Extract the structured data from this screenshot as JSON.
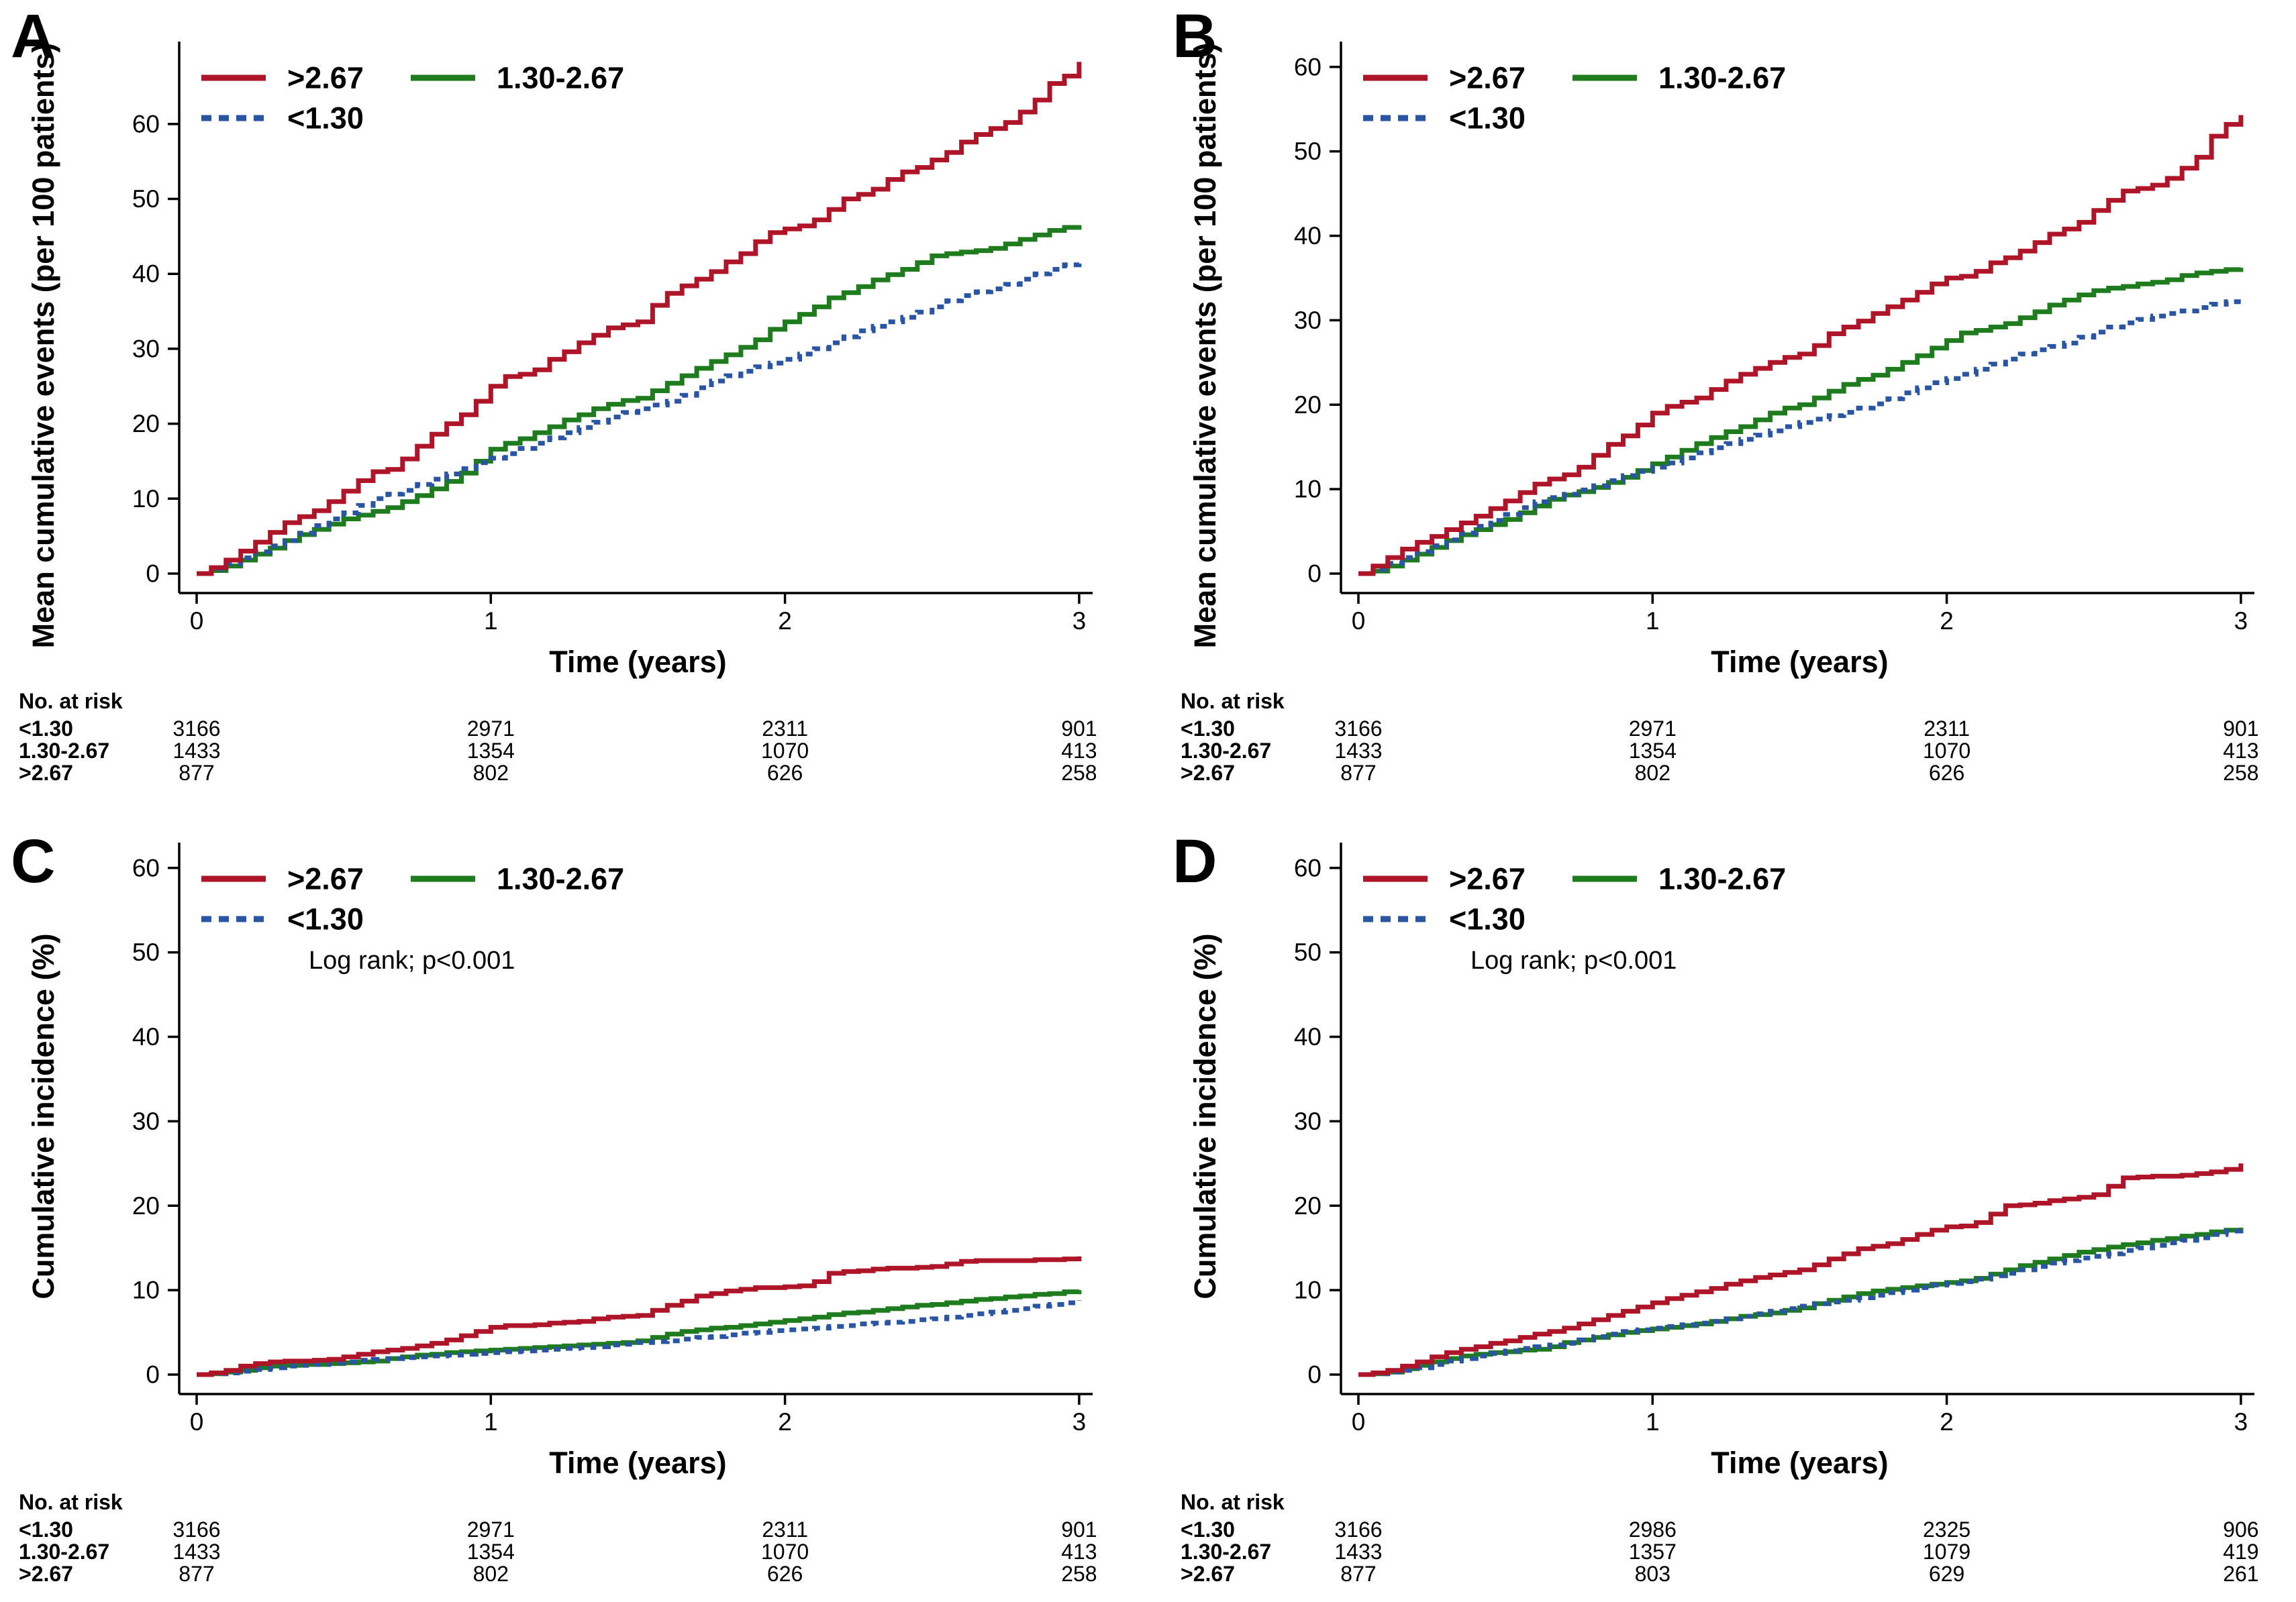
{
  "chart_data": [
    {
      "panel_label": "A",
      "type": "line",
      "title": "",
      "xlabel": "Time (years)",
      "ylabel": "Mean cumulative events (per 100 patients)",
      "x_ticks": [
        0,
        1,
        2,
        3
      ],
      "y_ticks": [
        0,
        10,
        20,
        30,
        40,
        50,
        60
      ],
      "xlim": [
        0,
        3
      ],
      "ylim": [
        0,
        71
      ],
      "grid": false,
      "legend_position": "top-left-inside",
      "annotation": "",
      "x_start": 0,
      "x_step": 0.05,
      "series": [
        {
          "name": ">2.67",
          "color": "#ae1528",
          "line_style": "solid",
          "values": [
            0,
            0.8,
            1.8,
            3,
            4.2,
            5.5,
            6.8,
            7.6,
            8.4,
            9.6,
            11,
            12.4,
            13.6,
            13.9,
            15.3,
            17,
            18.6,
            20,
            21.2,
            23,
            25,
            26.3,
            26.6,
            27.2,
            28.6,
            29.6,
            30.8,
            31.8,
            32.8,
            33.2,
            33.6,
            35.8,
            37.4,
            38.4,
            39.3,
            40.3,
            41.6,
            42.7,
            44.3,
            45.5,
            46,
            46.4,
            47.2,
            48.6,
            50,
            50.6,
            51.3,
            52.6,
            53.6,
            54.2,
            55.2,
            56.2,
            57.6,
            58.6,
            59.4,
            60.2,
            61.6,
            63.2,
            65.4,
            66.4,
            68.3
          ]
        },
        {
          "name": "1.30-2.67",
          "color": "#1e7b1e",
          "line_style": "solid",
          "values": [
            0,
            0.4,
            1,
            1.8,
            2.6,
            3.4,
            4.4,
            5.2,
            5.9,
            6.6,
            7.3,
            7.8,
            8.3,
            8.8,
            9.6,
            10.4,
            11.3,
            12.3,
            13.4,
            15,
            16.6,
            17.4,
            18,
            18.8,
            19.6,
            20.5,
            21.2,
            22,
            22.6,
            23.1,
            23.4,
            24.4,
            25.4,
            26.4,
            27.4,
            28.3,
            29.2,
            30.2,
            31.2,
            32.6,
            33.6,
            34.6,
            35.6,
            36.8,
            37.5,
            38.3,
            39.2,
            39.9,
            40.6,
            41.5,
            42.4,
            42.7,
            42.9,
            43.1,
            43.4,
            44,
            44.6,
            45.2,
            45.8,
            46.2,
            46.5
          ]
        },
        {
          "name": "<1.30",
          "color": "#2a55a2",
          "line_style": "dashed",
          "values": [
            0,
            0.6,
            1.3,
            2.1,
            2.9,
            3.7,
            4.4,
            5.4,
            6.4,
            7.3,
            8.1,
            9.1,
            10,
            10.6,
            11.1,
            11.9,
            12.6,
            13.3,
            14,
            14.8,
            15.4,
            16,
            16.7,
            17.4,
            18.1,
            18.8,
            19.5,
            20.2,
            20.9,
            21.5,
            22,
            22.5,
            23,
            23.8,
            24.8,
            25.7,
            26.4,
            27,
            27.6,
            28.1,
            28.6,
            29.3,
            30,
            30.8,
            31.6,
            32.4,
            33,
            33.6,
            34.2,
            34.9,
            35.6,
            36.4,
            37.1,
            37.6,
            38,
            38.6,
            39.3,
            40,
            40.6,
            41.2,
            42
          ]
        }
      ],
      "risk_table": {
        "header": "No. at risk",
        "row_labels": [
          "<1.30",
          "1.30-2.67",
          ">2.67"
        ],
        "rows": [
          [
            3166,
            2971,
            2311,
            901
          ],
          [
            1433,
            1354,
            1070,
            413
          ],
          [
            877,
            802,
            626,
            258
          ]
        ]
      }
    },
    {
      "panel_label": "B",
      "type": "line",
      "title": "",
      "xlabel": "Time (years)",
      "ylabel": "Mean cumulative events (per 100 patients)",
      "x_ticks": [
        0,
        1,
        2,
        3
      ],
      "y_ticks": [
        0,
        10,
        20,
        30,
        40,
        50,
        60
      ],
      "xlim": [
        0,
        3
      ],
      "ylim": [
        0,
        63
      ],
      "grid": false,
      "legend_position": "top-left-inside",
      "annotation": "",
      "x_start": 0,
      "x_step": 0.05,
      "series": [
        {
          "name": ">2.67",
          "color": "#ae1528",
          "line_style": "solid",
          "values": [
            0,
            0.9,
            1.9,
            2.9,
            3.7,
            4.4,
            5.2,
            6,
            6.8,
            7.7,
            8.6,
            9.6,
            10.6,
            11.2,
            11.7,
            12.6,
            14,
            15.3,
            16.3,
            17.6,
            19,
            19.8,
            20.3,
            20.8,
            21.8,
            22.8,
            23.6,
            24.3,
            25,
            25.6,
            26,
            27,
            28.4,
            29.2,
            29.9,
            30.8,
            31.6,
            32.4,
            33.3,
            34.3,
            35,
            35.2,
            35.8,
            36.8,
            37.4,
            38.2,
            39.2,
            40.2,
            40.8,
            41.6,
            43,
            44.2,
            45.3,
            45.6,
            46,
            46.8,
            48,
            49.3,
            51.8,
            53.2,
            54.3
          ]
        },
        {
          "name": "1.30-2.67",
          "color": "#1e7b1e",
          "line_style": "solid",
          "values": [
            0,
            0.3,
            0.9,
            1.6,
            2.3,
            3.1,
            3.9,
            4.6,
            5.2,
            5.8,
            6.4,
            7.2,
            8,
            8.8,
            9.3,
            9.7,
            10.2,
            10.8,
            11.4,
            12.2,
            13,
            13.8,
            14.6,
            15.4,
            16.1,
            16.8,
            17.4,
            18.2,
            19,
            19.6,
            20,
            20.8,
            21.6,
            22.4,
            23,
            23.5,
            24.2,
            25,
            25.8,
            26.7,
            27.6,
            28.5,
            28.8,
            29.2,
            29.6,
            30.3,
            31,
            31.8,
            32.4,
            33,
            33.5,
            33.8,
            34,
            34.3,
            34.5,
            34.8,
            35.3,
            35.6,
            35.8,
            36,
            36.2
          ]
        },
        {
          "name": "<1.30",
          "color": "#2a55a2",
          "line_style": "dashed",
          "values": [
            0,
            0.5,
            1.2,
            1.9,
            2.6,
            3.3,
            4,
            4.8,
            5.6,
            6.3,
            7,
            7.8,
            8.5,
            9,
            9.4,
            9.9,
            10.4,
            11,
            11.6,
            12.1,
            12.6,
            13.1,
            13.7,
            14.3,
            14.9,
            15.4,
            15.9,
            16.4,
            16.9,
            17.4,
            17.9,
            18.3,
            18.7,
            19.1,
            19.6,
            20.1,
            20.7,
            21.4,
            22,
            22.6,
            23.1,
            23.6,
            24.2,
            24.8,
            25.4,
            26,
            26.5,
            26.9,
            27.3,
            28,
            28.6,
            29.2,
            29.7,
            30.1,
            30.5,
            30.8,
            31.1,
            31.5,
            31.9,
            32.2,
            32.6
          ]
        }
      ],
      "risk_table": {
        "header": "No. at risk",
        "row_labels": [
          "<1.30",
          "1.30-2.67",
          ">2.67"
        ],
        "rows": [
          [
            3166,
            2971,
            2311,
            901
          ],
          [
            1433,
            1354,
            1070,
            413
          ],
          [
            877,
            802,
            626,
            258
          ]
        ]
      }
    },
    {
      "panel_label": "C",
      "type": "line",
      "title": "",
      "xlabel": "Time (years)",
      "ylabel": "Cumulative incidence (%)",
      "x_ticks": [
        0,
        1,
        2,
        3
      ],
      "y_ticks": [
        0,
        10,
        20,
        30,
        40,
        50,
        60
      ],
      "xlim": [
        0,
        3
      ],
      "ylim": [
        0,
        63
      ],
      "grid": false,
      "legend_position": "top-left-inside",
      "annotation": "Log rank; p<0.001",
      "x_start": 0,
      "x_step": 0.05,
      "series": [
        {
          "name": ">2.67",
          "color": "#ae1528",
          "line_style": "solid",
          "values": [
            0,
            0.2,
            0.5,
            1,
            1.3,
            1.5,
            1.6,
            1.6,
            1.7,
            1.8,
            2.1,
            2.4,
            2.7,
            2.9,
            3.1,
            3.4,
            3.7,
            4.1,
            4.6,
            5.1,
            5.6,
            5.8,
            5.8,
            5.9,
            6.1,
            6.2,
            6.3,
            6.6,
            6.8,
            6.9,
            7,
            7.6,
            8.2,
            8.7,
            9.3,
            9.6,
            9.9,
            10.1,
            10.3,
            10.3,
            10.4,
            10.5,
            11,
            12,
            12.2,
            12.3,
            12.5,
            12.6,
            12.6,
            12.7,
            12.8,
            13.1,
            13.4,
            13.5,
            13.5,
            13.5,
            13.5,
            13.6,
            13.6,
            13.7,
            14
          ]
        },
        {
          "name": "1.30-2.67",
          "color": "#1e7b1e",
          "line_style": "solid",
          "values": [
            0,
            0.1,
            0.3,
            0.5,
            0.8,
            1,
            1.1,
            1.2,
            1.2,
            1.3,
            1.4,
            1.5,
            1.6,
            1.9,
            2.1,
            2.3,
            2.4,
            2.6,
            2.7,
            2.8,
            2.9,
            3,
            3.1,
            3.2,
            3.3,
            3.4,
            3.5,
            3.6,
            3.7,
            3.8,
            4,
            4.4,
            4.8,
            5.1,
            5.3,
            5.5,
            5.6,
            5.8,
            6,
            6.2,
            6.4,
            6.6,
            6.8,
            7.1,
            7.3,
            7.4,
            7.6,
            7.8,
            8,
            8.2,
            8.3,
            8.5,
            8.7,
            8.9,
            9,
            9.2,
            9.3,
            9.5,
            9.6,
            9.8,
            10
          ]
        },
        {
          "name": "<1.30",
          "color": "#2a55a2",
          "line_style": "dashed",
          "values": [
            0,
            0.1,
            0.2,
            0.4,
            0.6,
            0.8,
            1,
            1.1,
            1.2,
            1.4,
            1.5,
            1.7,
            1.8,
            1.9,
            2,
            2.1,
            2.2,
            2.3,
            2.4,
            2.5,
            2.6,
            2.7,
            2.8,
            2.9,
            3,
            3.1,
            3.2,
            3.3,
            3.5,
            3.6,
            3.8,
            3.9,
            4,
            4.2,
            4.4,
            4.5,
            4.7,
            4.9,
            5,
            5.2,
            5.3,
            5.4,
            5.5,
            5.7,
            5.8,
            6,
            6.1,
            6.2,
            6.3,
            6.5,
            6.6,
            6.8,
            7,
            7.2,
            7.4,
            7.6,
            7.8,
            8.1,
            8.3,
            8.5,
            8.8
          ]
        }
      ],
      "risk_table": {
        "header": "No. at risk",
        "row_labels": [
          "<1.30",
          "1.30-2.67",
          ">2.67"
        ],
        "rows": [
          [
            3166,
            2971,
            2311,
            901
          ],
          [
            1433,
            1354,
            1070,
            413
          ],
          [
            877,
            802,
            626,
            258
          ]
        ]
      }
    },
    {
      "panel_label": "D",
      "type": "line",
      "title": "",
      "xlabel": "Time (years)",
      "ylabel": "Cumulative incidence (%)",
      "x_ticks": [
        0,
        1,
        2,
        3
      ],
      "y_ticks": [
        0,
        10,
        20,
        30,
        40,
        50,
        60
      ],
      "xlim": [
        0,
        3
      ],
      "ylim": [
        0,
        63
      ],
      "grid": false,
      "legend_position": "top-left-inside",
      "annotation": "Log rank; p<0.001",
      "x_start": 0,
      "x_step": 0.05,
      "series": [
        {
          "name": ">2.67",
          "color": "#ae1528",
          "line_style": "solid",
          "values": [
            0,
            0.2,
            0.5,
            1,
            1.5,
            2.1,
            2.6,
            3,
            3.3,
            3.7,
            4,
            4.4,
            4.8,
            5.1,
            5.5,
            6,
            6.5,
            7,
            7.5,
            8,
            8.5,
            9,
            9.4,
            9.8,
            10.2,
            10.7,
            11.1,
            11.5,
            11.8,
            12.1,
            12.4,
            13,
            13.7,
            14.3,
            14.9,
            15.2,
            15.5,
            16,
            16.6,
            17.1,
            17.5,
            17.6,
            18,
            19,
            20,
            20.1,
            20.3,
            20.6,
            20.8,
            21,
            21.3,
            22.3,
            23.3,
            23.4,
            23.5,
            23.5,
            23.6,
            23.8,
            24,
            24.3,
            25
          ]
        },
        {
          "name": "1.30-2.67",
          "color": "#1e7b1e",
          "line_style": "solid",
          "values": [
            0,
            0.1,
            0.3,
            0.7,
            1.1,
            1.5,
            1.9,
            2.2,
            2.4,
            2.6,
            2.7,
            2.9,
            3,
            3.3,
            3.8,
            4.1,
            4.4,
            4.7,
            5,
            5.2,
            5.4,
            5.6,
            5.8,
            6,
            6.3,
            6.6,
            6.9,
            7.1,
            7.3,
            7.6,
            7.9,
            8.4,
            8.8,
            9.2,
            9.6,
            9.9,
            10.1,
            10.3,
            10.5,
            10.7,
            10.9,
            11.1,
            11.4,
            11.9,
            12.4,
            12.9,
            13.3,
            13.7,
            14.1,
            14.5,
            14.8,
            15.1,
            15.4,
            15.6,
            15.9,
            16.1,
            16.4,
            16.6,
            16.9,
            17.1,
            17.4
          ]
        },
        {
          "name": "<1.30",
          "color": "#2a55a2",
          "line_style": "dashed",
          "values": [
            0,
            0.1,
            0.3,
            0.5,
            0.8,
            1.2,
            1.6,
            1.9,
            2.2,
            2.5,
            2.8,
            3.1,
            3.3,
            3.5,
            3.7,
            4.1,
            4.5,
            4.8,
            5.1,
            5.3,
            5.5,
            5.7,
            5.9,
            6.1,
            6.3,
            6.6,
            6.9,
            7.2,
            7.5,
            7.8,
            8.1,
            8.4,
            8.6,
            8.8,
            9.1,
            9.4,
            9.7,
            10,
            10.3,
            10.6,
            10.8,
            11,
            11.3,
            11.7,
            12,
            12.4,
            12.8,
            13.2,
            13.5,
            13.8,
            14,
            14.3,
            14.7,
            15,
            15.3,
            15.6,
            15.9,
            16.2,
            16.6,
            17,
            17.7
          ]
        }
      ],
      "risk_table": {
        "header": "No. at risk",
        "row_labels": [
          "<1.30",
          "1.30-2.67",
          ">2.67"
        ],
        "rows": [
          [
            3166,
            2986,
            2325,
            906
          ],
          [
            1433,
            1357,
            1079,
            419
          ],
          [
            877,
            803,
            629,
            261
          ]
        ]
      }
    }
  ]
}
